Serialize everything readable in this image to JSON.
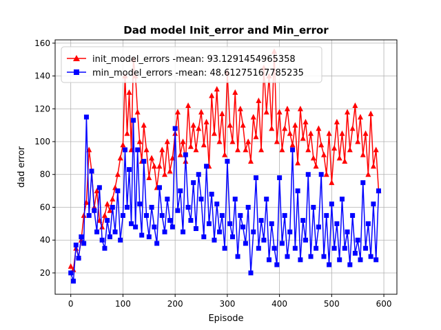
{
  "chart_data": {
    "type": "line",
    "title": "Dad model Init_error and Min_error",
    "xlabel": "Episode",
    "ylabel": "dad error",
    "xlim": [
      -30,
      625
    ],
    "ylim": [
      7,
      162
    ],
    "xticks": [
      0,
      100,
      200,
      300,
      400,
      500,
      600
    ],
    "yticks": [
      20,
      40,
      60,
      80,
      100,
      120,
      140,
      160
    ],
    "grid": true,
    "legend_position": "top-left",
    "series": [
      {
        "name": "init_model_errors -mean: 93.1291454965358",
        "color": "#ff0000",
        "marker": "triangle",
        "x": [
          0,
          5,
          10,
          15,
          20,
          25,
          30,
          35,
          40,
          45,
          50,
          55,
          60,
          65,
          70,
          75,
          80,
          85,
          90,
          95,
          100,
          104,
          108,
          112,
          116,
          120,
          124,
          128,
          132,
          136,
          140,
          145,
          150,
          155,
          160,
          165,
          170,
          175,
          180,
          185,
          190,
          195,
          200,
          205,
          210,
          215,
          220,
          225,
          230,
          235,
          240,
          245,
          250,
          255,
          260,
          265,
          270,
          275,
          280,
          285,
          290,
          295,
          300,
          305,
          310,
          315,
          320,
          325,
          330,
          335,
          340,
          345,
          350,
          355,
          360,
          365,
          370,
          375,
          380,
          385,
          390,
          395,
          400,
          405,
          410,
          415,
          420,
          425,
          430,
          435,
          440,
          445,
          450,
          455,
          460,
          465,
          470,
          475,
          480,
          485,
          490,
          495,
          500,
          505,
          510,
          515,
          520,
          525,
          530,
          535,
          540,
          545,
          550,
          555,
          560,
          565,
          570,
          575,
          580,
          585,
          590
        ],
        "y": [
          24,
          22,
          35,
          30,
          40,
          55,
          63,
          95,
          82,
          60,
          70,
          52,
          48,
          55,
          62,
          58,
          65,
          72,
          80,
          90,
          98,
          140,
          105,
          130,
          95,
          150,
          140,
          118,
          100,
          88,
          110,
          95,
          78,
          90,
          85,
          72,
          85,
          95,
          80,
          100,
          82,
          90,
          105,
          118,
          92,
          100,
          88,
          122,
          97,
          110,
          95,
          108,
          118,
          98,
          112,
          85,
          128,
          105,
          132,
          100,
          117,
          92,
          142,
          110,
          100,
          130,
          95,
          120,
          110,
          95,
          100,
          88,
          115,
          103,
          125,
          95,
          145,
          118,
          140,
          108,
          155,
          100,
          118,
          95,
          108,
          120,
          105,
          98,
          110,
          87,
          120,
          102,
          112,
          95,
          105,
          90,
          85,
          108,
          98,
          92,
          80,
          105,
          75,
          96,
          112,
          90,
          105,
          88,
          118,
          95,
          108,
          122,
          100,
          115,
          92,
          105,
          80,
          117,
          85,
          95,
          70
        ]
      },
      {
        "name": "min_model_errors -mean: 48.61275167785235",
        "color": "#0000ff",
        "marker": "square",
        "x": [
          0,
          5,
          10,
          15,
          20,
          25,
          30,
          35,
          40,
          45,
          50,
          55,
          60,
          65,
          70,
          75,
          80,
          85,
          90,
          95,
          100,
          104,
          108,
          112,
          116,
          120,
          124,
          128,
          132,
          136,
          140,
          145,
          150,
          155,
          160,
          165,
          170,
          175,
          180,
          185,
          190,
          195,
          200,
          205,
          210,
          215,
          220,
          225,
          230,
          235,
          240,
          245,
          250,
          255,
          260,
          265,
          270,
          275,
          280,
          285,
          290,
          295,
          300,
          305,
          310,
          315,
          320,
          325,
          330,
          335,
          340,
          345,
          350,
          355,
          360,
          365,
          370,
          375,
          380,
          385,
          390,
          395,
          400,
          405,
          410,
          415,
          420,
          425,
          430,
          435,
          440,
          445,
          450,
          455,
          460,
          465,
          470,
          475,
          480,
          485,
          490,
          495,
          500,
          505,
          510,
          515,
          520,
          525,
          530,
          535,
          540,
          545,
          550,
          555,
          560,
          565,
          570,
          575,
          580,
          585,
          590
        ],
        "y": [
          20,
          15,
          37,
          29,
          42,
          38,
          115,
          55,
          82,
          58,
          45,
          72,
          40,
          35,
          52,
          42,
          60,
          45,
          70,
          40,
          55,
          95,
          60,
          83,
          50,
          113,
          48,
          95,
          62,
          43,
          88,
          55,
          42,
          60,
          48,
          38,
          72,
          55,
          45,
          65,
          52,
          48,
          108,
          58,
          70,
          45,
          92,
          60,
          52,
          75,
          47,
          80,
          65,
          42,
          85,
          50,
          68,
          40,
          62,
          45,
          55,
          35,
          88,
          50,
          42,
          65,
          30,
          55,
          48,
          38,
          60,
          20,
          45,
          78,
          35,
          52,
          40,
          65,
          28,
          50,
          35,
          25,
          78,
          38,
          55,
          30,
          45,
          95,
          35,
          70,
          28,
          52,
          40,
          80,
          30,
          60,
          35,
          48,
          80,
          30,
          55,
          25,
          62,
          35,
          50,
          28,
          65,
          35,
          45,
          25,
          55,
          32,
          40,
          28,
          75,
          35,
          50,
          30,
          62,
          28,
          70
        ]
      }
    ]
  }
}
